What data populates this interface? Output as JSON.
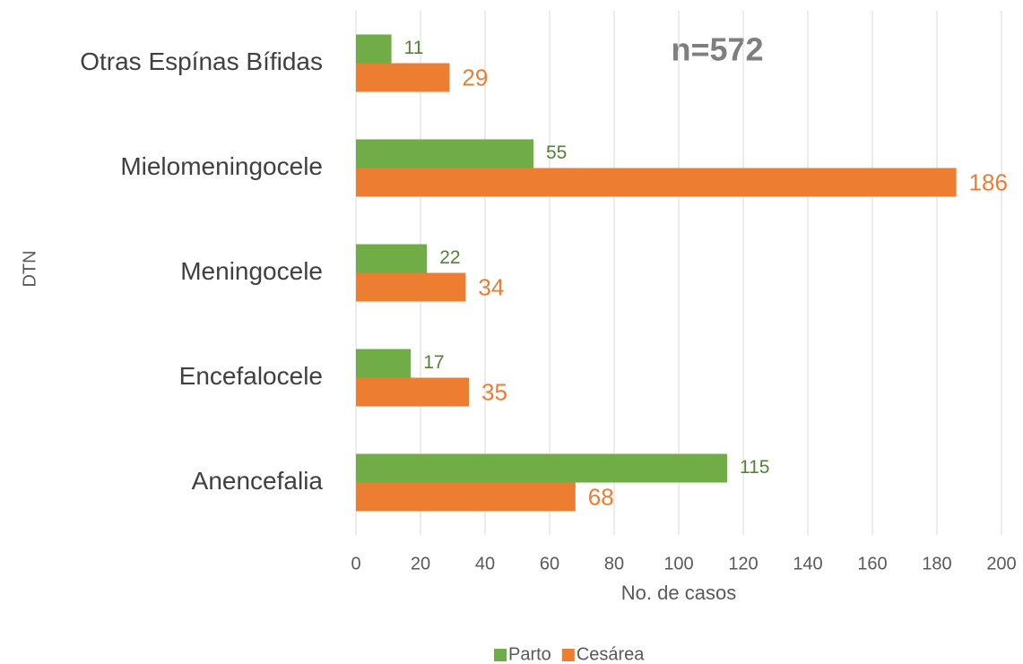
{
  "chart_data": {
    "type": "bar",
    "orientation": "horizontal",
    "annotation": "n=572",
    "y_label": "DTN",
    "x_label": "No. de casos",
    "categories": [
      "Otras Espínas Bífidas",
      "Mielomeningocele",
      "Meningocele",
      "Encefalocele",
      "Anencefalia"
    ],
    "series": [
      {
        "name": "Parto",
        "color": "#70ad47",
        "label_color": "#548235",
        "values": [
          11,
          55,
          22,
          17,
          115
        ]
      },
      {
        "name": "Cesárea",
        "color": "#ed7d31",
        "label_color": "#ed7d31",
        "values": [
          29,
          186,
          34,
          35,
          68
        ]
      }
    ],
    "xlim": [
      0,
      200
    ],
    "xticks": [
      0,
      20,
      40,
      60,
      80,
      100,
      120,
      140,
      160,
      180,
      200
    ],
    "grid": true,
    "legend": "bottom"
  }
}
